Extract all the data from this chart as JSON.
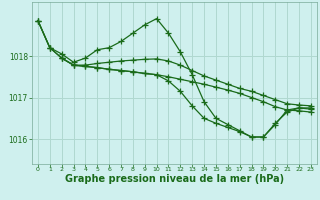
{
  "background_color": "#cff0ee",
  "grid_color": "#b0d8d0",
  "line_color": "#1a6b1a",
  "marker": "+",
  "markersize": 4,
  "linewidth": 0.9,
  "xlabel": "Graphe pression niveau de la mer (hPa)",
  "xlabel_fontsize": 7,
  "ylabel_ticks": [
    1016,
    1017,
    1018
  ],
  "xlim": [
    -0.5,
    23.5
  ],
  "ylim": [
    1015.4,
    1019.3
  ],
  "xticks": [
    0,
    1,
    2,
    3,
    4,
    5,
    6,
    7,
    8,
    9,
    10,
    11,
    12,
    13,
    14,
    15,
    16,
    17,
    18,
    19,
    20,
    21,
    22,
    23
  ],
  "series": [
    {
      "x": [
        0,
        1,
        2,
        3,
        4,
        5,
        6,
        7,
        8,
        9,
        10,
        11,
        12,
        13,
        14,
        15,
        16,
        17,
        18,
        19,
        20,
        21,
        22,
        23
      ],
      "y": [
        1018.85,
        1018.2,
        1018.05,
        1017.85,
        1017.95,
        1018.15,
        1018.2,
        1018.35,
        1018.55,
        1018.75,
        1018.9,
        1018.55,
        1018.1,
        1017.55,
        1016.9,
        1016.5,
        1016.35,
        1016.2,
        1016.05,
        1016.05,
        1016.35,
        1016.7,
        1016.75,
        1016.75
      ]
    },
    {
      "x": [
        0,
        1,
        2,
        3,
        4,
        5,
        6,
        7,
        8,
        9,
        10,
        11,
        12,
        13,
        14,
        15,
        16,
        17,
        18,
        19,
        20,
        21,
        22,
        23
      ],
      "y": [
        1018.85,
        1018.2,
        1017.95,
        1017.78,
        1017.78,
        1017.82,
        1017.85,
        1017.88,
        1017.9,
        1017.92,
        1017.93,
        1017.88,
        1017.78,
        1017.65,
        1017.52,
        1017.42,
        1017.32,
        1017.22,
        1017.15,
        1017.05,
        1016.95,
        1016.85,
        1016.82,
        1016.8
      ]
    },
    {
      "x": [
        0,
        1,
        2,
        3,
        4,
        5,
        6,
        7,
        8,
        9,
        10,
        11,
        12,
        13,
        14,
        15,
        16,
        17,
        18,
        19,
        20,
        21,
        22,
        23
      ],
      "y": [
        1018.85,
        1018.2,
        1017.95,
        1017.78,
        1017.75,
        1017.72,
        1017.68,
        1017.65,
        1017.62,
        1017.58,
        1017.55,
        1017.5,
        1017.44,
        1017.38,
        1017.32,
        1017.25,
        1017.18,
        1017.1,
        1017.0,
        1016.9,
        1016.78,
        1016.7,
        1016.68,
        1016.65
      ]
    },
    {
      "x": [
        2,
        3,
        4,
        5,
        6,
        7,
        8,
        9,
        10,
        11,
        12,
        13,
        14,
        15,
        16,
        17,
        18,
        19,
        20,
        21,
        22,
        23
      ],
      "y": [
        1017.95,
        1017.78,
        1017.75,
        1017.72,
        1017.68,
        1017.65,
        1017.62,
        1017.58,
        1017.55,
        1017.4,
        1017.15,
        1016.8,
        1016.5,
        1016.38,
        1016.28,
        1016.18,
        1016.05,
        1016.05,
        1016.38,
        1016.65,
        1016.75,
        1016.72
      ]
    }
  ]
}
